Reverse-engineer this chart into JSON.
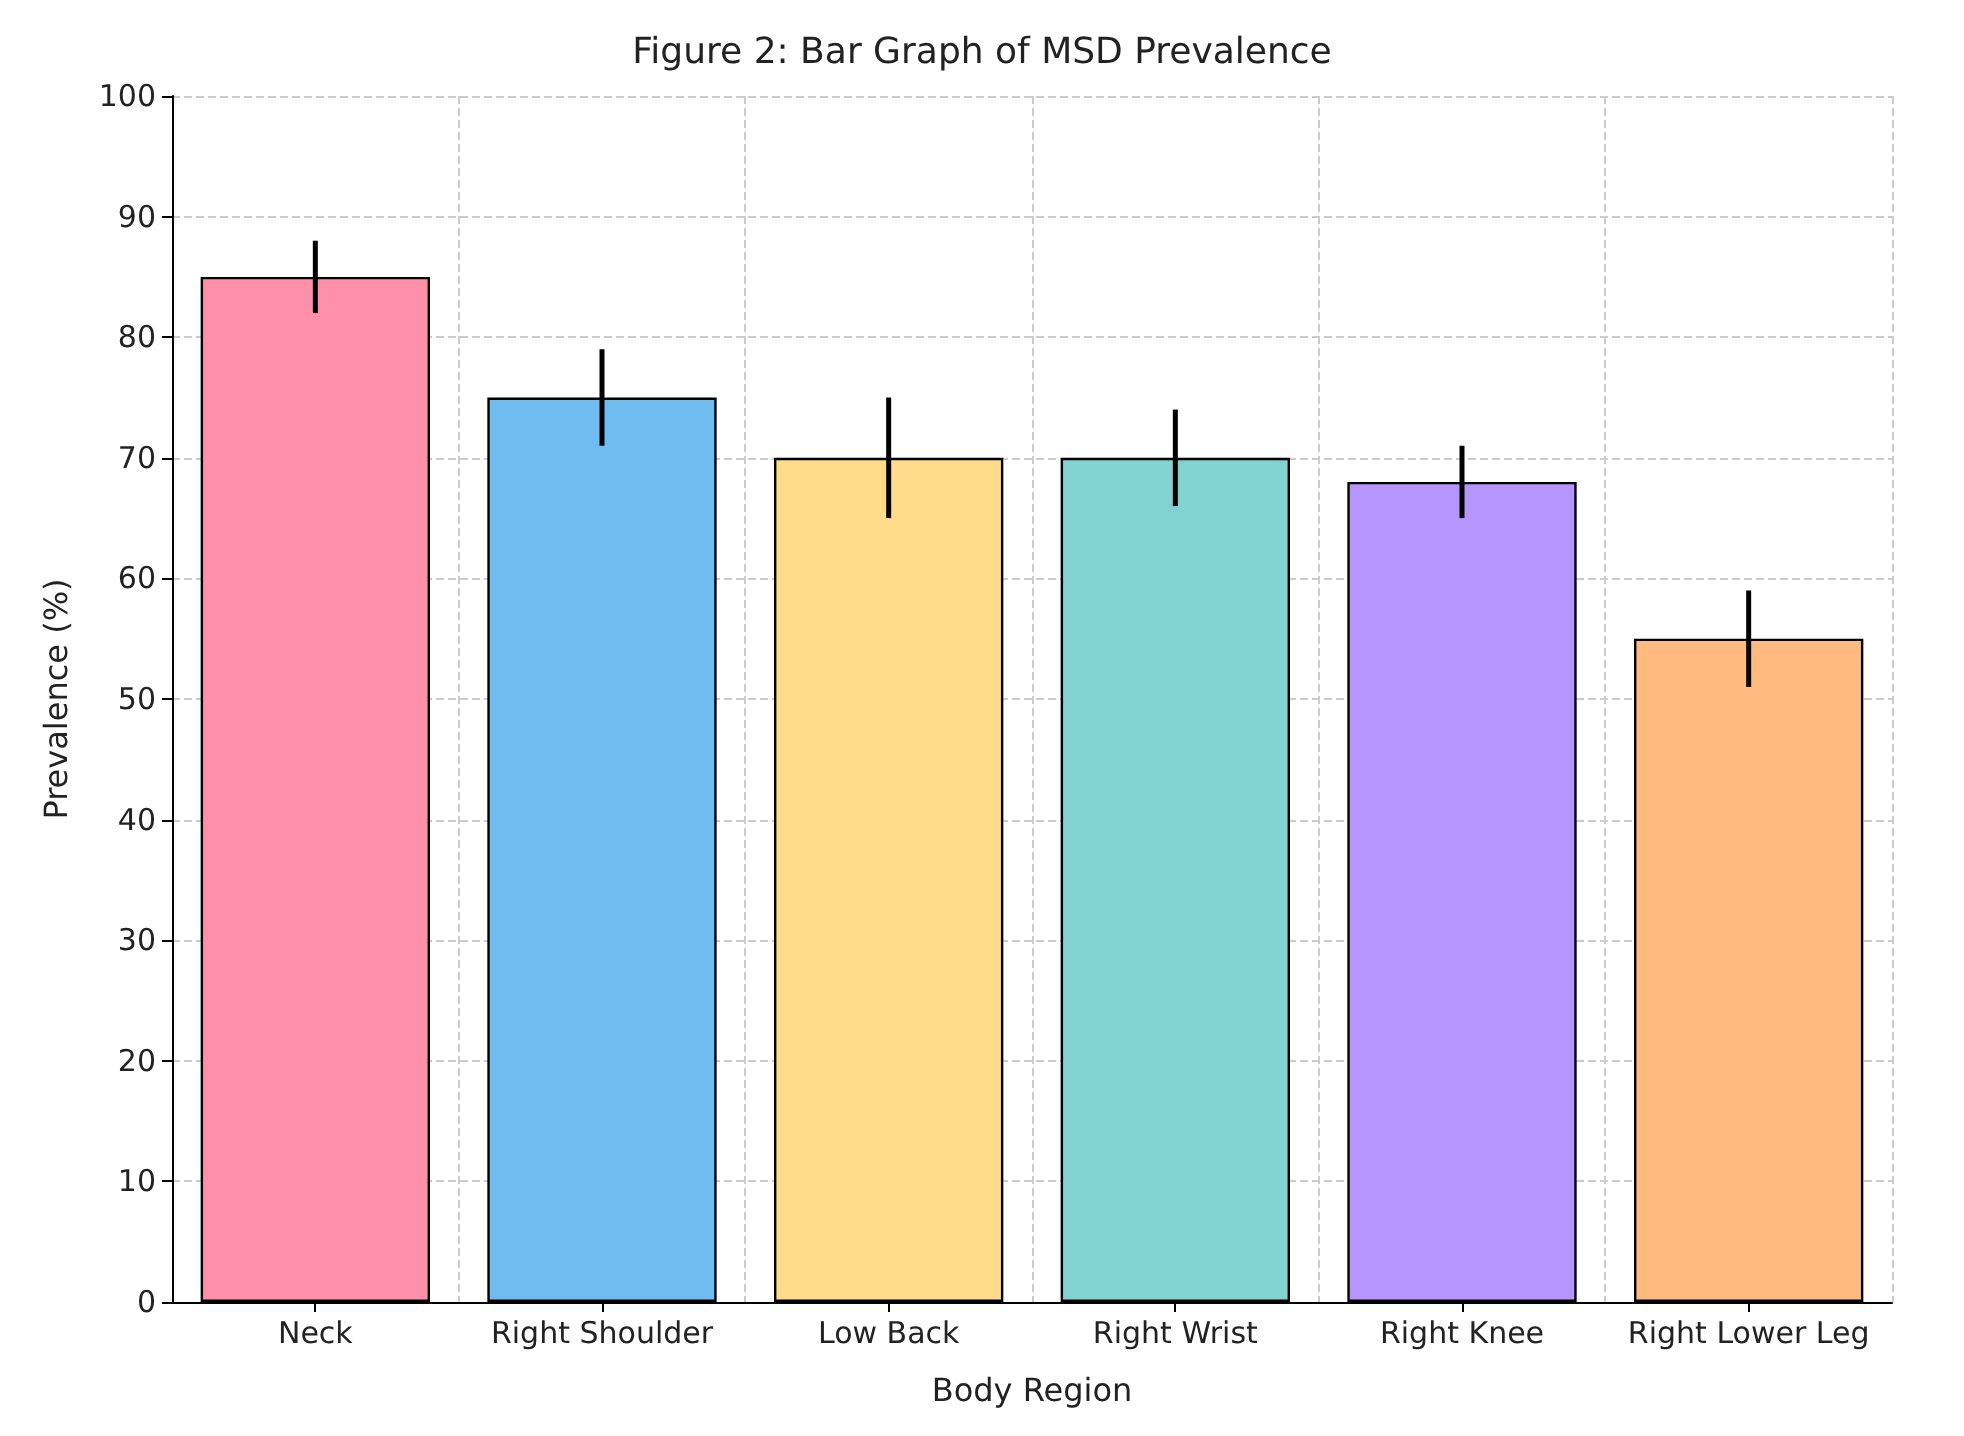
{
  "chart_data": {
    "type": "bar",
    "title": "Figure 2: Bar Graph of MSD Prevalence",
    "xlabel": "Body Region",
    "ylabel": "Prevalence (%)",
    "categories": [
      "Neck",
      "Right Shoulder",
      "Low Back",
      "Right Wrist",
      "Right Knee",
      "Right Lower Leg"
    ],
    "values": [
      85,
      75,
      70,
      70,
      68,
      55
    ],
    "errors": [
      3,
      4,
      5,
      4,
      3,
      4
    ],
    "colors": [
      "#ff8fab",
      "#6ebcf0",
      "#ffdb8a",
      "#82d2d2",
      "#b795ff",
      "#ffbb7f"
    ],
    "ylim": [
      0,
      100
    ],
    "yticks": [
      0,
      10,
      20,
      30,
      40,
      50,
      60,
      70,
      80,
      90,
      100
    ],
    "grid": true
  }
}
